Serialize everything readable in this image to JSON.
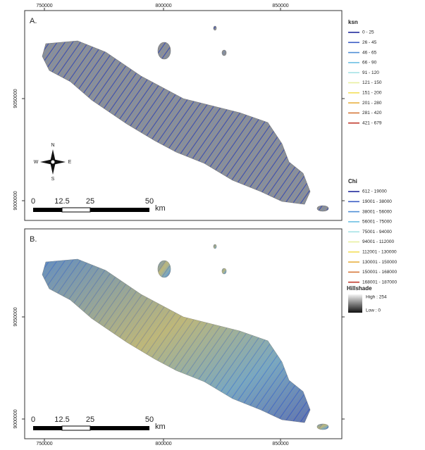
{
  "panels": [
    {
      "label": "A.",
      "x_labels": [
        "750000",
        "800000",
        "850000"
      ],
      "y_labels": [
        "9050000",
        "9000000"
      ]
    },
    {
      "label": "B.",
      "x_labels": [
        "750000",
        "800000",
        "850000"
      ],
      "y_labels": [
        "9050000",
        "9000000"
      ]
    }
  ],
  "scale_bar": {
    "labels": [
      "0",
      "12.5",
      "25",
      "50"
    ],
    "unit": "km"
  },
  "north_arrow": {
    "n": "N",
    "s": "S",
    "w": "W",
    "e": "E"
  },
  "legend": {
    "ksn": {
      "title": "ksn",
      "items": [
        {
          "label": "0 - 25",
          "color": "#1f2a9c"
        },
        {
          "label": "26 - 45",
          "color": "#3a5cc4"
        },
        {
          "label": "46 - 65",
          "color": "#4f8fd6"
        },
        {
          "label": "66 - 90",
          "color": "#6cc0e4"
        },
        {
          "label": "91 - 120",
          "color": "#a6e3e6"
        },
        {
          "label": "121 - 150",
          "color": "#e8f0a0"
        },
        {
          "label": "151 - 200",
          "color": "#f3df5a"
        },
        {
          "label": "201 - 280",
          "color": "#e8b040"
        },
        {
          "label": "281 - 420",
          "color": "#d6783a"
        },
        {
          "label": "421 - 679",
          "color": "#c0392b"
        }
      ]
    },
    "chi": {
      "title": "Chi",
      "items": [
        {
          "label": "612 - 19000",
          "color": "#1f2a9c"
        },
        {
          "label": "19001 - 38000",
          "color": "#3a5cc4"
        },
        {
          "label": "38001 - 56000",
          "color": "#4f8fd6"
        },
        {
          "label": "56001 - 75000",
          "color": "#6cc0e4"
        },
        {
          "label": "75001 - 94000",
          "color": "#a6e3e6"
        },
        {
          "label": "94001 - 112000",
          "color": "#e8f0a0"
        },
        {
          "label": "112001 - 130000",
          "color": "#f3df5a"
        },
        {
          "label": "130001 - 150000",
          "color": "#e8b040"
        },
        {
          "label": "150001 - 168000",
          "color": "#d6783a"
        },
        {
          "label": "168001 - 187000",
          "color": "#c0392b"
        }
      ]
    },
    "hillshade": {
      "title": "Hillshade",
      "high": "High : 254",
      "low": "Low : 0"
    }
  }
}
